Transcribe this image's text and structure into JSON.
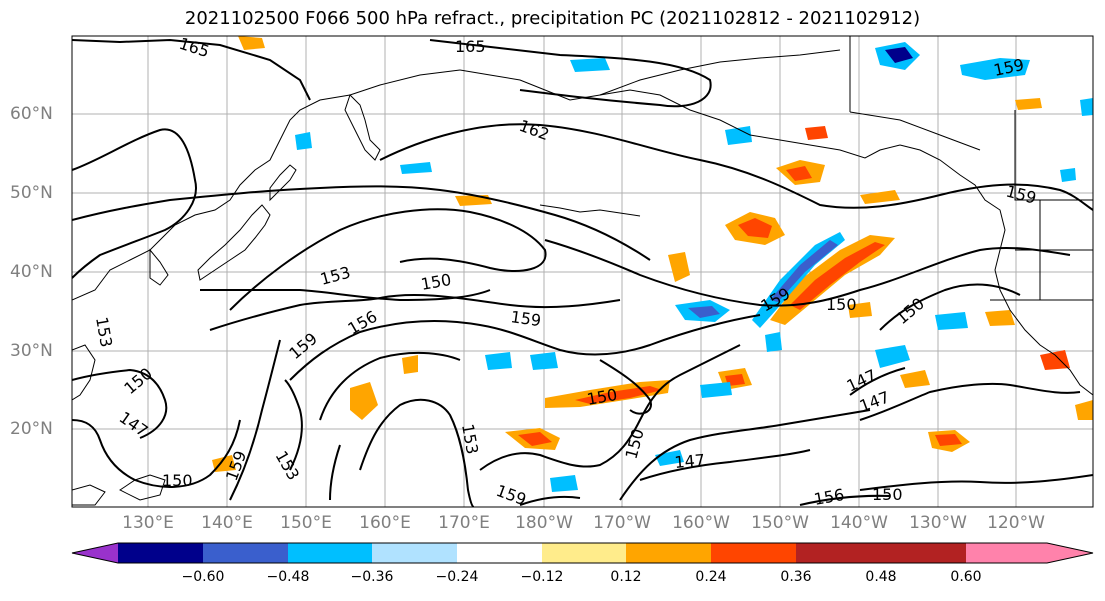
{
  "title": "2021102500 F066 500 hPa refract., precipitation PC (2021102812 - 2021102912)",
  "lat_labels": [
    "60°N",
    "50°N",
    "40°N",
    "30°N",
    "20°N"
  ],
  "lon_labels": [
    "130°E",
    "140°E",
    "150°E",
    "160°E",
    "170°E",
    "180°W",
    "170°W",
    "160°W",
    "150°W",
    "140°W",
    "130°W",
    "120°W"
  ],
  "colorbar": {
    "colors": [
      "#9932cc",
      "#00008b",
      "#3a5fcd",
      "#00bfff",
      "#b0e2ff",
      "#ffffff",
      "#ffec8b",
      "#ffa500",
      "#ff4500",
      "#b22222",
      "#ff82ab"
    ],
    "tick_labels": [
      "−0.60",
      "−0.48",
      "−0.36",
      "−0.24",
      "−0.12",
      "0.12",
      "0.24",
      "0.36",
      "0.48",
      "0.60"
    ]
  },
  "contour_labels": [
    "165",
    "165",
    "162",
    "159",
    "153",
    "150",
    "156",
    "159",
    "159",
    "153",
    "150",
    "147",
    "159",
    "150",
    "159",
    "150",
    "150",
    "150",
    "147",
    "147",
    "147",
    "153",
    "150",
    "159",
    "156",
    "150",
    "159",
    "153"
  ]
}
